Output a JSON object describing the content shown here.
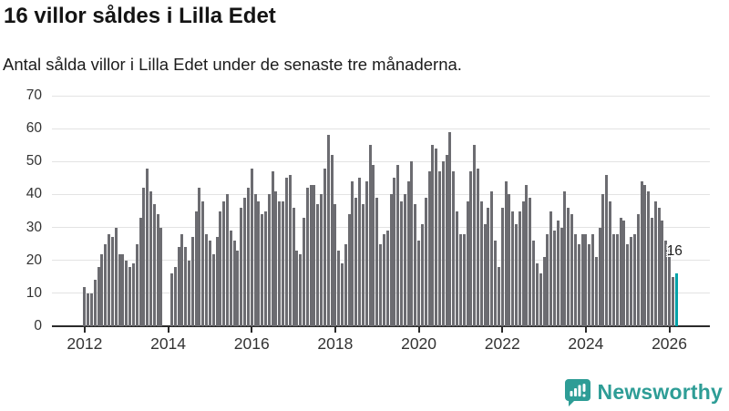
{
  "header": {
    "title": "16 villor såldes i Lilla Edet",
    "subtitle": "Antal sålda villor i Lilla Edet under de senaste tre månaderna."
  },
  "annotation": {
    "text": "16"
  },
  "logo": {
    "name": "Newsworthy",
    "color": "#2e9d96"
  },
  "colors": {
    "bar": "#6c6c71",
    "highlight": "#00a2a8",
    "gridline": "#e3e3e3",
    "axis": "#2a2a2a",
    "axis_label": "#333333"
  },
  "chart_data": {
    "type": "bar",
    "title": "16 villor såldes i Lilla Edet",
    "xlabel": "",
    "ylabel": "",
    "ylim": [
      0,
      70
    ],
    "yticks": [
      0,
      10,
      20,
      30,
      40,
      50,
      60,
      70
    ],
    "year_ticks": [
      2012,
      2014,
      2016,
      2018,
      2020,
      2022,
      2024,
      2026
    ],
    "grid": "horizontal",
    "start_month": "2012-01",
    "end_month": "2026-03",
    "note": "rolling 3-month sold-houses count per month; 0 = no bar (data gap late 2013/early 2014); last bar highlighted teal with label 16",
    "values": [
      12,
      10,
      10,
      14,
      18,
      22,
      25,
      28,
      27,
      30,
      22,
      22,
      20,
      18,
      19,
      25,
      33,
      42,
      48,
      41,
      37,
      34,
      30,
      0,
      0,
      16,
      18,
      24,
      28,
      24,
      20,
      27,
      35,
      42,
      38,
      28,
      26,
      22,
      27,
      35,
      38,
      40,
      29,
      26,
      23,
      36,
      39,
      42,
      48,
      40,
      38,
      34,
      35,
      40,
      47,
      41,
      38,
      38,
      45,
      46,
      36,
      23,
      22,
      33,
      42,
      43,
      43,
      37,
      40,
      48,
      58,
      52,
      37,
      23,
      19,
      25,
      34,
      44,
      39,
      45,
      37,
      44,
      55,
      49,
      39,
      25,
      28,
      29,
      40,
      45,
      49,
      38,
      40,
      44,
      50,
      37,
      26,
      31,
      39,
      47,
      55,
      54,
      47,
      50,
      52,
      59,
      47,
      35,
      28,
      28,
      38,
      47,
      55,
      48,
      38,
      31,
      36,
      41,
      26,
      18,
      36,
      44,
      40,
      35,
      31,
      35,
      38,
      43,
      39,
      26,
      19,
      16,
      21,
      28,
      35,
      29,
      32,
      30,
      41,
      36,
      34,
      28,
      25,
      28,
      28,
      25,
      28,
      21,
      30,
      40,
      46,
      38,
      28,
      28,
      33,
      32,
      25,
      27,
      28,
      34,
      44,
      43,
      41,
      33,
      38,
      36,
      32,
      26,
      24,
      15,
      16
    ],
    "highlight_last": true,
    "annotation_last_value": "16",
    "legend": "none"
  }
}
